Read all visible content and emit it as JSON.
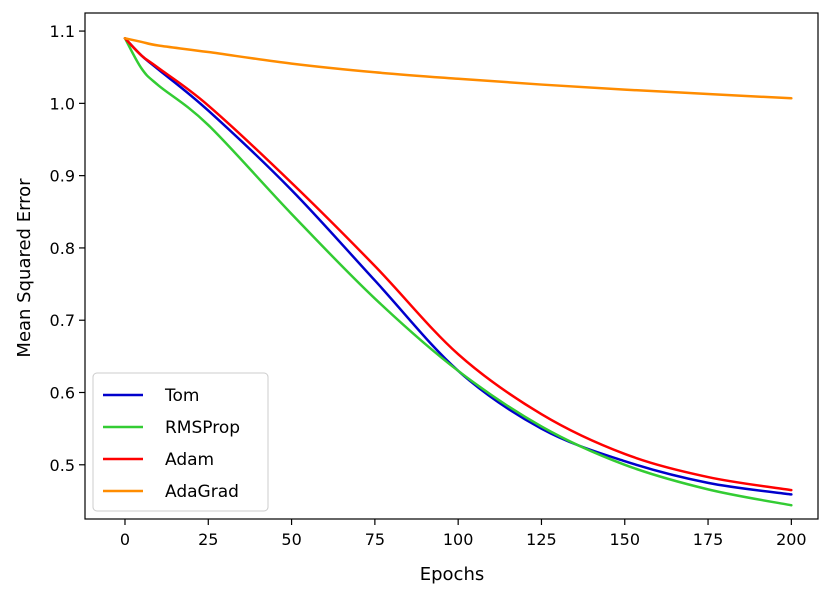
{
  "chart_data": {
    "type": "line",
    "title": "",
    "xlabel": "Epochs",
    "ylabel": "Mean Squared Error",
    "xlim": [
      -12,
      208
    ],
    "ylim": [
      0.425,
      1.125
    ],
    "x_ticks": [
      0,
      25,
      50,
      75,
      100,
      125,
      150,
      175,
      200
    ],
    "x_tick_labels": [
      "0",
      "25",
      "50",
      "75",
      "100",
      "125",
      "150",
      "175",
      "200"
    ],
    "y_ticks": [
      0.5,
      0.6,
      0.7,
      0.8,
      0.9,
      1.0,
      1.1
    ],
    "y_tick_labels": [
      "0.5",
      "0.6",
      "0.7",
      "0.8",
      "0.9",
      "1.0",
      "1.1"
    ],
    "grid": false,
    "legend_position": "lower-left",
    "x": [
      0,
      5,
      10,
      25,
      50,
      75,
      100,
      125,
      150,
      175,
      200
    ],
    "series": [
      {
        "name": "Tom",
        "color": "#0000cc",
        "values": [
          1.09,
          1.066,
          1.047,
          0.99,
          0.88,
          0.755,
          0.63,
          0.55,
          0.505,
          0.475,
          0.459
        ]
      },
      {
        "name": "RMSProp",
        "color": "#33cc33",
        "values": [
          1.09,
          1.048,
          1.025,
          0.97,
          0.847,
          0.73,
          0.63,
          0.553,
          0.5,
          0.466,
          0.444
        ]
      },
      {
        "name": "Adam",
        "color": "#ff0000",
        "values": [
          1.09,
          1.066,
          1.049,
          0.997,
          0.89,
          0.775,
          0.653,
          0.57,
          0.515,
          0.483,
          0.465
        ]
      },
      {
        "name": "AdaGrad",
        "color": "#ff8c00",
        "values": [
          1.09,
          1.085,
          1.08,
          1.071,
          1.055,
          1.043,
          1.034,
          1.026,
          1.019,
          1.013,
          1.007
        ]
      }
    ]
  }
}
